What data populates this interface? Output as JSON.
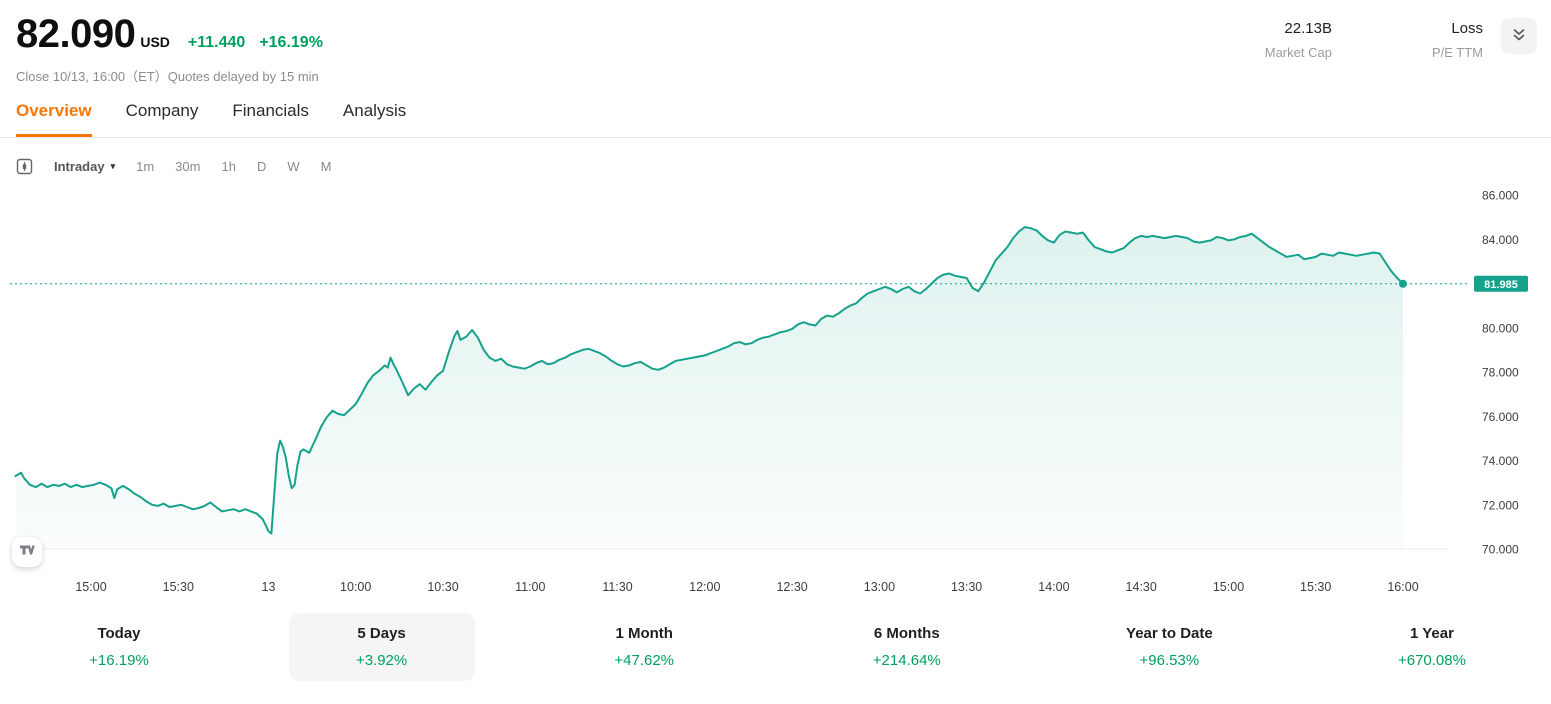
{
  "header": {
    "price": "82.090",
    "currency": "USD",
    "change": "+11.440",
    "change_pct": "+16.19%",
    "close_info": "Close 10/13, 16:00（ET）Quotes delayed by 15 min",
    "stats": [
      {
        "value": "22.13B",
        "label": "Market Cap"
      },
      {
        "value": "Loss",
        "label": "P/E TTM"
      }
    ]
  },
  "tabs": [
    {
      "label": "Overview",
      "active": true
    },
    {
      "label": "Company",
      "active": false
    },
    {
      "label": "Financials",
      "active": false
    },
    {
      "label": "Analysis",
      "active": false
    }
  ],
  "toolbar": {
    "range_label": "Intraday",
    "intervals": [
      "1m",
      "30m",
      "1h",
      "D",
      "W",
      "M"
    ]
  },
  "icons": {
    "chart_style": "candlestick-box",
    "range_caret": "▾",
    "expand": "double-chevron-down",
    "attribution": "tradingview"
  },
  "colors": {
    "accent_teal": "#15a28c",
    "green": "#00a05e",
    "orange": "#f5770a"
  },
  "chart_data": {
    "type": "area",
    "title": "Intraday price chart",
    "ylim": [
      70,
      86
    ],
    "grid": "off",
    "legend": "none",
    "last_price": 81.985,
    "last_price_label": "81.985",
    "y_ticks": [
      {
        "value": 86,
        "label": "86.000"
      },
      {
        "value": 84,
        "label": "84.000"
      },
      {
        "value": 80,
        "label": "80.000"
      },
      {
        "value": 78,
        "label": "78.000"
      },
      {
        "value": 76,
        "label": "76.000"
      },
      {
        "value": 74,
        "label": "74.000"
      },
      {
        "value": 72,
        "label": "72.000"
      },
      {
        "value": 70,
        "label": "70.000"
      }
    ],
    "x_ticks": [
      {
        "u": 25,
        "label": "15:00"
      },
      {
        "u": 55,
        "label": "15:30"
      },
      {
        "u": 86,
        "label": "13"
      },
      {
        "u": 116,
        "label": "10:00"
      },
      {
        "u": 146,
        "label": "10:30"
      },
      {
        "u": 176,
        "label": "11:00"
      },
      {
        "u": 206,
        "label": "11:30"
      },
      {
        "u": 236,
        "label": "12:00"
      },
      {
        "u": 266,
        "label": "12:30"
      },
      {
        "u": 296,
        "label": "13:00"
      },
      {
        "u": 326,
        "label": "13:30"
      },
      {
        "u": 356,
        "label": "14:00"
      },
      {
        "u": 386,
        "label": "14:30"
      },
      {
        "u": 416,
        "label": "15:00"
      },
      {
        "u": 446,
        "label": "15:30"
      },
      {
        "u": 476,
        "label": "16:00"
      }
    ],
    "points": [
      [
        -1,
        73.3
      ],
      [
        1,
        73.45
      ],
      [
        2,
        73.2
      ],
      [
        4,
        72.9
      ],
      [
        6,
        72.8
      ],
      [
        8,
        72.95
      ],
      [
        10,
        72.8
      ],
      [
        12,
        72.9
      ],
      [
        14,
        72.85
      ],
      [
        16,
        72.95
      ],
      [
        18,
        72.8
      ],
      [
        20,
        72.9
      ],
      [
        22,
        72.8
      ],
      [
        24,
        72.85
      ],
      [
        26,
        72.9
      ],
      [
        28,
        73.0
      ],
      [
        30,
        72.9
      ],
      [
        32,
        72.75
      ],
      [
        33,
        72.3
      ],
      [
        34,
        72.7
      ],
      [
        36,
        72.85
      ],
      [
        38,
        72.7
      ],
      [
        40,
        72.5
      ],
      [
        42,
        72.35
      ],
      [
        44,
        72.15
      ],
      [
        46,
        72.0
      ],
      [
        48,
        71.95
      ],
      [
        50,
        72.05
      ],
      [
        52,
        71.9
      ],
      [
        54,
        71.95
      ],
      [
        56,
        72.0
      ],
      [
        58,
        71.9
      ],
      [
        60,
        71.8
      ],
      [
        62,
        71.85
      ],
      [
        64,
        71.95
      ],
      [
        66,
        72.1
      ],
      [
        68,
        71.9
      ],
      [
        70,
        71.7
      ],
      [
        72,
        71.75
      ],
      [
        74,
        71.8
      ],
      [
        76,
        71.7
      ],
      [
        78,
        71.8
      ],
      [
        80,
        71.7
      ],
      [
        82,
        71.6
      ],
      [
        84,
        71.35
      ],
      [
        85,
        71.1
      ],
      [
        86,
        70.8
      ],
      [
        87,
        70.7
      ],
      [
        88,
        72.5
      ],
      [
        89,
        74.3
      ],
      [
        90,
        74.9
      ],
      [
        91,
        74.6
      ],
      [
        92,
        74.1
      ],
      [
        93,
        73.3
      ],
      [
        94,
        72.75
      ],
      [
        95,
        72.9
      ],
      [
        96,
        73.8
      ],
      [
        97,
        74.4
      ],
      [
        98,
        74.5
      ],
      [
        100,
        74.35
      ],
      [
        102,
        74.9
      ],
      [
        104,
        75.5
      ],
      [
        106,
        75.95
      ],
      [
        108,
        76.25
      ],
      [
        110,
        76.1
      ],
      [
        112,
        76.05
      ],
      [
        114,
        76.3
      ],
      [
        116,
        76.55
      ],
      [
        118,
        77.0
      ],
      [
        120,
        77.5
      ],
      [
        122,
        77.85
      ],
      [
        124,
        78.05
      ],
      [
        126,
        78.3
      ],
      [
        127,
        78.2
      ],
      [
        128,
        78.65
      ],
      [
        129,
        78.35
      ],
      [
        130,
        78.1
      ],
      [
        132,
        77.55
      ],
      [
        134,
        76.95
      ],
      [
        136,
        77.25
      ],
      [
        138,
        77.45
      ],
      [
        140,
        77.2
      ],
      [
        142,
        77.55
      ],
      [
        144,
        77.85
      ],
      [
        146,
        78.05
      ],
      [
        148,
        78.9
      ],
      [
        150,
        79.65
      ],
      [
        151,
        79.85
      ],
      [
        152,
        79.45
      ],
      [
        154,
        79.6
      ],
      [
        156,
        79.9
      ],
      [
        158,
        79.55
      ],
      [
        160,
        79.0
      ],
      [
        162,
        78.65
      ],
      [
        164,
        78.5
      ],
      [
        166,
        78.6
      ],
      [
        168,
        78.35
      ],
      [
        170,
        78.25
      ],
      [
        172,
        78.2
      ],
      [
        174,
        78.15
      ],
      [
        176,
        78.25
      ],
      [
        178,
        78.4
      ],
      [
        180,
        78.5
      ],
      [
        182,
        78.35
      ],
      [
        184,
        78.4
      ],
      [
        186,
        78.55
      ],
      [
        188,
        78.65
      ],
      [
        190,
        78.8
      ],
      [
        192,
        78.9
      ],
      [
        194,
        79.0
      ],
      [
        196,
        79.05
      ],
      [
        198,
        78.95
      ],
      [
        200,
        78.85
      ],
      [
        202,
        78.7
      ],
      [
        204,
        78.5
      ],
      [
        206,
        78.35
      ],
      [
        208,
        78.25
      ],
      [
        210,
        78.3
      ],
      [
        212,
        78.4
      ],
      [
        214,
        78.45
      ],
      [
        216,
        78.3
      ],
      [
        218,
        78.15
      ],
      [
        220,
        78.1
      ],
      [
        222,
        78.2
      ],
      [
        224,
        78.35
      ],
      [
        226,
        78.5
      ],
      [
        228,
        78.55
      ],
      [
        230,
        78.6
      ],
      [
        232,
        78.65
      ],
      [
        234,
        78.7
      ],
      [
        236,
        78.75
      ],
      [
        238,
        78.85
      ],
      [
        240,
        78.95
      ],
      [
        242,
        79.05
      ],
      [
        244,
        79.15
      ],
      [
        246,
        79.3
      ],
      [
        248,
        79.35
      ],
      [
        250,
        79.25
      ],
      [
        252,
        79.3
      ],
      [
        254,
        79.45
      ],
      [
        256,
        79.55
      ],
      [
        258,
        79.6
      ],
      [
        260,
        79.7
      ],
      [
        262,
        79.8
      ],
      [
        264,
        79.85
      ],
      [
        266,
        79.95
      ],
      [
        268,
        80.15
      ],
      [
        270,
        80.25
      ],
      [
        272,
        80.15
      ],
      [
        274,
        80.1
      ],
      [
        276,
        80.4
      ],
      [
        278,
        80.55
      ],
      [
        280,
        80.5
      ],
      [
        282,
        80.65
      ],
      [
        284,
        80.85
      ],
      [
        286,
        81.0
      ],
      [
        288,
        81.1
      ],
      [
        290,
        81.35
      ],
      [
        292,
        81.55
      ],
      [
        294,
        81.65
      ],
      [
        296,
        81.75
      ],
      [
        298,
        81.85
      ],
      [
        300,
        81.75
      ],
      [
        302,
        81.6
      ],
      [
        304,
        81.75
      ],
      [
        306,
        81.85
      ],
      [
        308,
        81.65
      ],
      [
        310,
        81.55
      ],
      [
        312,
        81.75
      ],
      [
        314,
        82.0
      ],
      [
        316,
        82.25
      ],
      [
        318,
        82.4
      ],
      [
        320,
        82.45
      ],
      [
        322,
        82.35
      ],
      [
        324,
        82.3
      ],
      [
        326,
        82.25
      ],
      [
        328,
        81.8
      ],
      [
        330,
        81.65
      ],
      [
        332,
        82.05
      ],
      [
        334,
        82.55
      ],
      [
        336,
        83.05
      ],
      [
        338,
        83.35
      ],
      [
        340,
        83.65
      ],
      [
        342,
        84.05
      ],
      [
        344,
        84.35
      ],
      [
        346,
        84.55
      ],
      [
        348,
        84.5
      ],
      [
        350,
        84.4
      ],
      [
        352,
        84.15
      ],
      [
        354,
        83.95
      ],
      [
        356,
        83.85
      ],
      [
        358,
        84.2
      ],
      [
        360,
        84.35
      ],
      [
        362,
        84.3
      ],
      [
        364,
        84.25
      ],
      [
        366,
        84.3
      ],
      [
        368,
        83.95
      ],
      [
        370,
        83.65
      ],
      [
        372,
        83.55
      ],
      [
        374,
        83.45
      ],
      [
        376,
        83.4
      ],
      [
        378,
        83.5
      ],
      [
        380,
        83.6
      ],
      [
        382,
        83.85
      ],
      [
        384,
        84.05
      ],
      [
        386,
        84.15
      ],
      [
        388,
        84.1
      ],
      [
        390,
        84.15
      ],
      [
        392,
        84.1
      ],
      [
        394,
        84.05
      ],
      [
        396,
        84.1
      ],
      [
        398,
        84.15
      ],
      [
        400,
        84.1
      ],
      [
        402,
        84.05
      ],
      [
        404,
        83.9
      ],
      [
        406,
        83.85
      ],
      [
        408,
        83.9
      ],
      [
        410,
        83.95
      ],
      [
        412,
        84.1
      ],
      [
        414,
        84.05
      ],
      [
        416,
        83.95
      ],
      [
        418,
        84.0
      ],
      [
        420,
        84.1
      ],
      [
        422,
        84.15
      ],
      [
        424,
        84.25
      ],
      [
        426,
        84.05
      ],
      [
        428,
        83.85
      ],
      [
        430,
        83.65
      ],
      [
        432,
        83.5
      ],
      [
        434,
        83.35
      ],
      [
        436,
        83.2
      ],
      [
        438,
        83.25
      ],
      [
        440,
        83.3
      ],
      [
        442,
        83.1
      ],
      [
        444,
        83.15
      ],
      [
        446,
        83.2
      ],
      [
        448,
        83.35
      ],
      [
        450,
        83.3
      ],
      [
        452,
        83.25
      ],
      [
        454,
        83.4
      ],
      [
        456,
        83.35
      ],
      [
        458,
        83.3
      ],
      [
        460,
        83.25
      ],
      [
        462,
        83.3
      ],
      [
        464,
        83.35
      ],
      [
        466,
        83.4
      ],
      [
        468,
        83.35
      ],
      [
        470,
        82.95
      ],
      [
        472,
        82.55
      ],
      [
        474,
        82.25
      ],
      [
        476,
        81.985
      ]
    ]
  },
  "periods": [
    {
      "label": "Today",
      "value": "+16.19%",
      "selected": false
    },
    {
      "label": "5 Days",
      "value": "+3.92%",
      "selected": true
    },
    {
      "label": "1 Month",
      "value": "+47.62%",
      "selected": false
    },
    {
      "label": "6 Months",
      "value": "+214.64%",
      "selected": false
    },
    {
      "label": "Year to Date",
      "value": "+96.53%",
      "selected": false
    },
    {
      "label": "1 Year",
      "value": "+670.08%",
      "selected": false
    }
  ]
}
